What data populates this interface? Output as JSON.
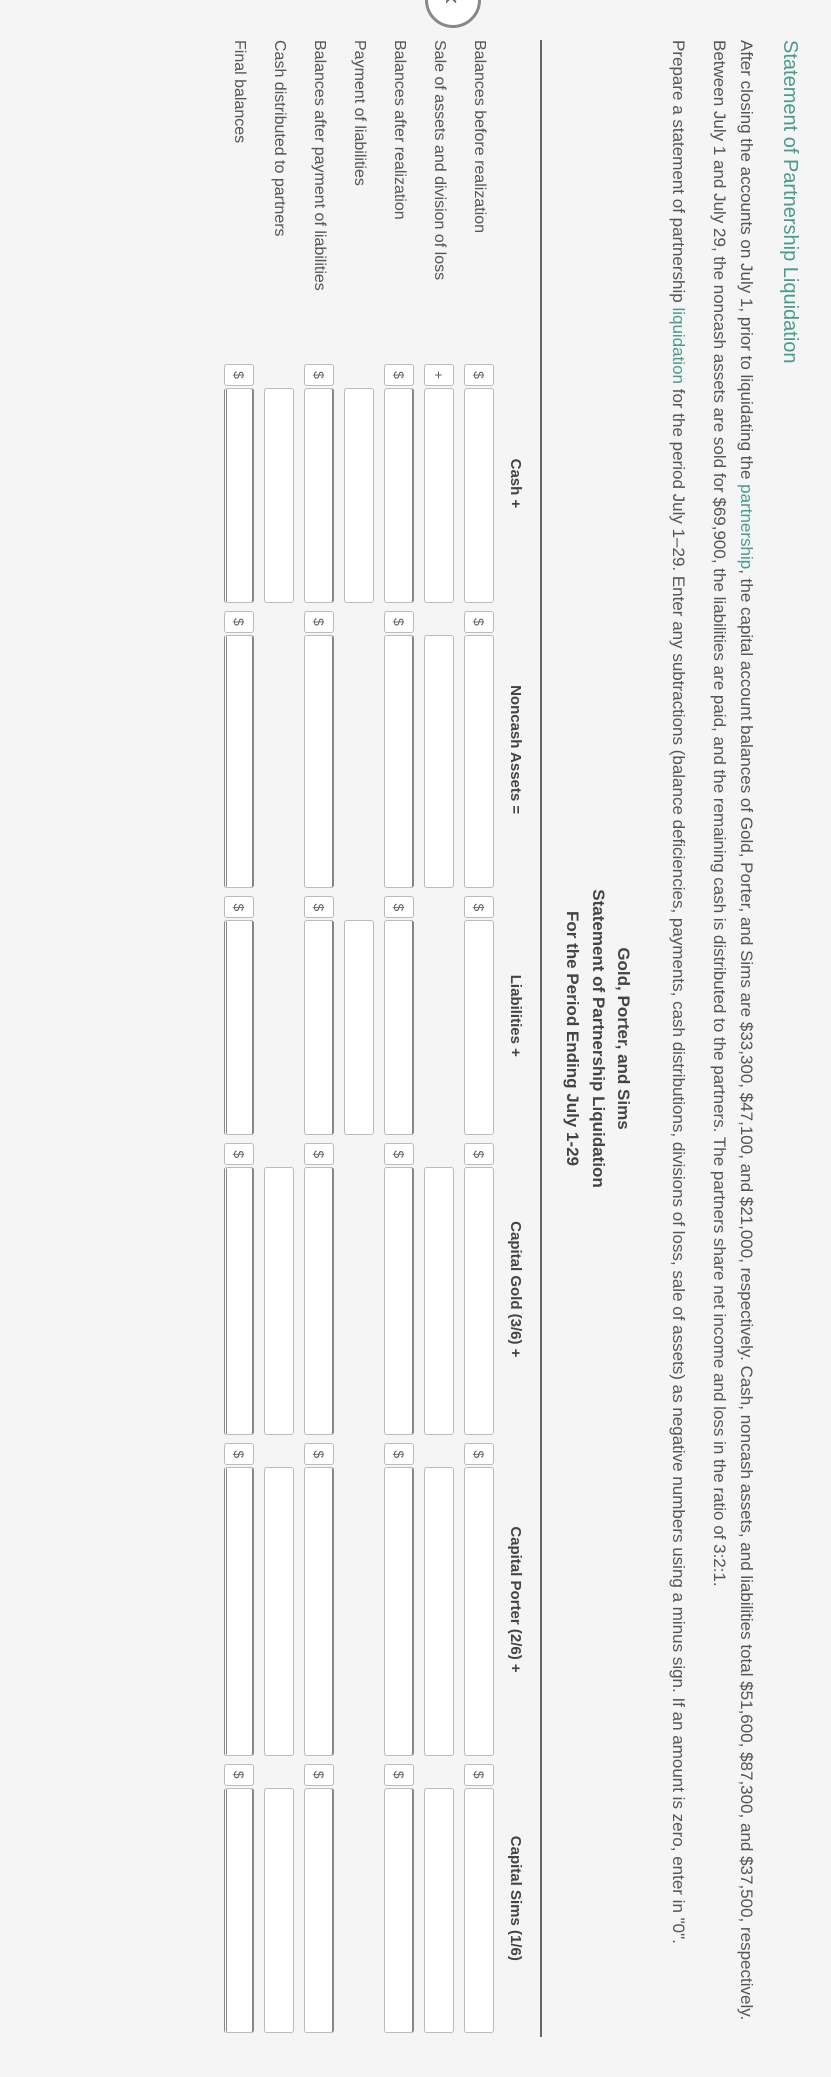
{
  "page_title": "Statement of Partnership Liquidation",
  "intro_p1_a": "After closing the accounts on July 1, prior to liquidating the ",
  "intro_p1_link1": "partnership",
  "intro_p1_b": ", the capital account balances of Gold, Porter, and Sims are $33,300, $47,100, and $21,000, respectively. Cash, noncash assets, and liabilities total $51,600, $87,300, and $37,500, respectively. Between July 1 and July 29, the noncash assets are sold for $69,900, the liabilities are paid, and the remaining cash is distributed to the partners. The partners share net income and loss in the ratio of 3:2:1.",
  "intro_p2_a": "Prepare a statement of partnership ",
  "intro_p2_link1": "liquidation",
  "intro_p2_b": " for the period July 1–29. Enter any subtractions (balance deficiencies, payments, cash distributions, divisions of loss, sale of assets) as negative numbers using a minus sign. If an amount is zero, enter in \"0\".",
  "table_header": {
    "line1": "Gold, Porter, and Sims",
    "line2": "Statement of Partnership Liquidation",
    "line3": "For the Period Ending July 1-29"
  },
  "columns": {
    "cash": "Cash +",
    "noncash": "Noncash Assets =",
    "liabilities": "Liabilities +",
    "gold": "Capital Gold (3/6) +",
    "porter": "Capital Porter (2/6) +",
    "sims": "Capital Sims (1/6)"
  },
  "rows": [
    {
      "label": "Balances before realization",
      "signs": [
        "$",
        "$",
        "$",
        "$",
        "$",
        "$"
      ],
      "style": "plain"
    },
    {
      "label": "Sale of assets and division of loss",
      "signs": [
        "+",
        "",
        "",
        "",
        "",
        ""
      ],
      "style": "plain"
    },
    {
      "label": "Balances after realization",
      "signs": [
        "$",
        "$",
        "$",
        "$",
        "$",
        "$"
      ],
      "style": "subtotal"
    },
    {
      "label": "Payment of liabilities",
      "signs": [
        "",
        "",
        "",
        "",
        "",
        ""
      ],
      "style": "plain"
    },
    {
      "label": "Balances after payment of liabilities",
      "signs": [
        "$",
        "$",
        "$",
        "$",
        "$",
        "$"
      ],
      "style": "subtotal"
    },
    {
      "label": "Cash distributed to partners",
      "signs": [
        "",
        "",
        "",
        "",
        "",
        ""
      ],
      "style": "plain"
    },
    {
      "label": "Final balances",
      "signs": [
        "$",
        "$",
        "$",
        "$",
        "$",
        "$"
      ],
      "style": "total"
    }
  ],
  "colors": {
    "teal": "#4a9b8e",
    "text": "#555555",
    "heading": "#444444",
    "border": "#bbbbbb",
    "background": "#f5f5f5"
  }
}
